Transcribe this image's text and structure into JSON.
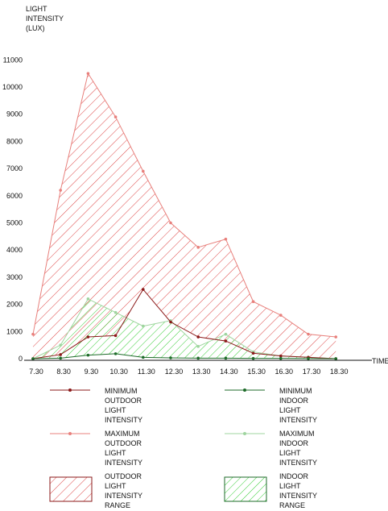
{
  "chart_data": {
    "type": "line",
    "ylabel_lines": [
      "LIGHT",
      "INTENSITY",
      "(LUX)"
    ],
    "xlabel": "TIME",
    "ylim": [
      0,
      11000
    ],
    "yticks": [
      0,
      1000,
      2000,
      3000,
      4000,
      5000,
      6000,
      7000,
      8000,
      9000,
      10000,
      11000
    ],
    "categories": [
      "7.30",
      "8.30",
      "9.30",
      "10.30",
      "11.30",
      "12.30",
      "13.30",
      "14.30",
      "15.30",
      "16.30",
      "17.30",
      "18.30"
    ],
    "series": [
      {
        "name": "MINIMUM OUTDOOR LIGHT INTENSITY",
        "color": "#8b1a1a",
        "values": [
          0,
          150,
          800,
          850,
          2550,
          1350,
          800,
          650,
          200,
          100,
          50,
          0
        ]
      },
      {
        "name": "MAXIMUM OUTDOOR LIGHT INTENSITY",
        "color": "#e8807c",
        "values": [
          900,
          6200,
          10500,
          8900,
          6900,
          5000,
          4100,
          4400,
          2100,
          1600,
          900,
          800
        ]
      },
      {
        "name": "MINIMUM INDOOR LIGHT INTENSITY",
        "color": "#1e6b2a",
        "values": [
          0,
          20,
          130,
          180,
          50,
          30,
          20,
          20,
          10,
          10,
          5,
          0
        ]
      },
      {
        "name": "MAXIMUM INDOOR LIGHT INTENSITY",
        "color": "#9fd49f",
        "values": [
          0,
          500,
          2200,
          1700,
          1200,
          1400,
          450,
          900,
          250,
          100,
          50,
          0
        ]
      }
    ],
    "ranges": [
      {
        "name": "OUTDOOR LIGHT INTENSITY RANGE",
        "color": "#cc2222",
        "fill": "diagonal-hatch"
      },
      {
        "name": "INDOOR LIGHT INTENSITY RANGE",
        "color": "#33bb33",
        "fill": "diagonal-hatch"
      }
    ],
    "legend_position": "bottom",
    "grid": false
  },
  "legend": {
    "min_outdoor": "MINIMUM\nOUTDOOR\nLIGHT\nINTENSITY",
    "min_indoor": "MINIMUM\nINDOOR\nLIGHT\nINTENSITY",
    "max_outdoor": "MAXIMUM\nOUTDOOR\nLIGHT\nINTENSITY",
    "max_indoor": "MAXIMUM\nINDOOR\nLIGHT\nINTENSITY",
    "outdoor_range": "OUTDOOR\nLIGHT\nINTENSITY\nRANGE",
    "indoor_range": "INDOOR\nLIGHT\nINTENSITY\nRANGE"
  }
}
